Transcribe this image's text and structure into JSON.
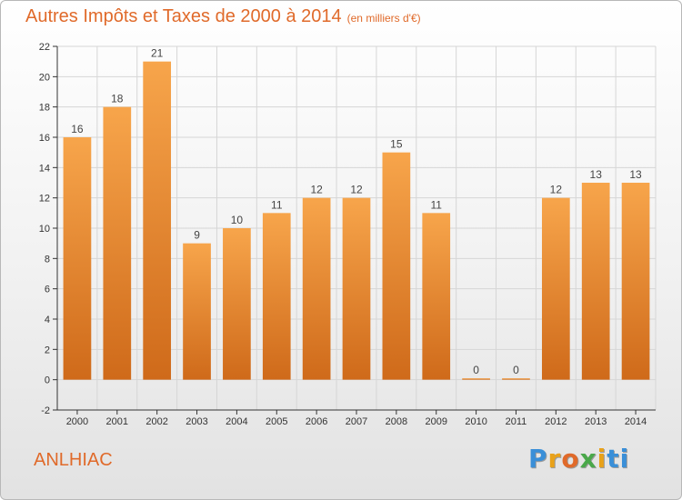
{
  "chart_data": {
    "type": "bar",
    "title": "Autres Impôts et Taxes de 2000 à 2014",
    "unit": "(en milliers d'€)",
    "categories": [
      "2000",
      "2001",
      "2002",
      "2003",
      "2004",
      "2005",
      "2006",
      "2007",
      "2008",
      "2009",
      "2010",
      "2011",
      "2012",
      "2013",
      "2014"
    ],
    "values": [
      16,
      18,
      21,
      9,
      10,
      11,
      12,
      12,
      15,
      11,
      0,
      0,
      12,
      13,
      13
    ],
    "ylim": [
      -2,
      22
    ],
    "yticks": [
      -2,
      0,
      2,
      4,
      6,
      8,
      10,
      12,
      14,
      16,
      18,
      20,
      22
    ],
    "grid": true,
    "colors": {
      "bar_light": "#f7a54b",
      "bar_dark": "#cf6a1a",
      "grid": "#d6d6d6",
      "axis": "#333333"
    }
  },
  "footer": {
    "commune": "ANLHIAC",
    "logo": "Proxiti",
    "logo_letters": [
      "P",
      "r",
      "o",
      "x",
      "i",
      "ti"
    ]
  }
}
